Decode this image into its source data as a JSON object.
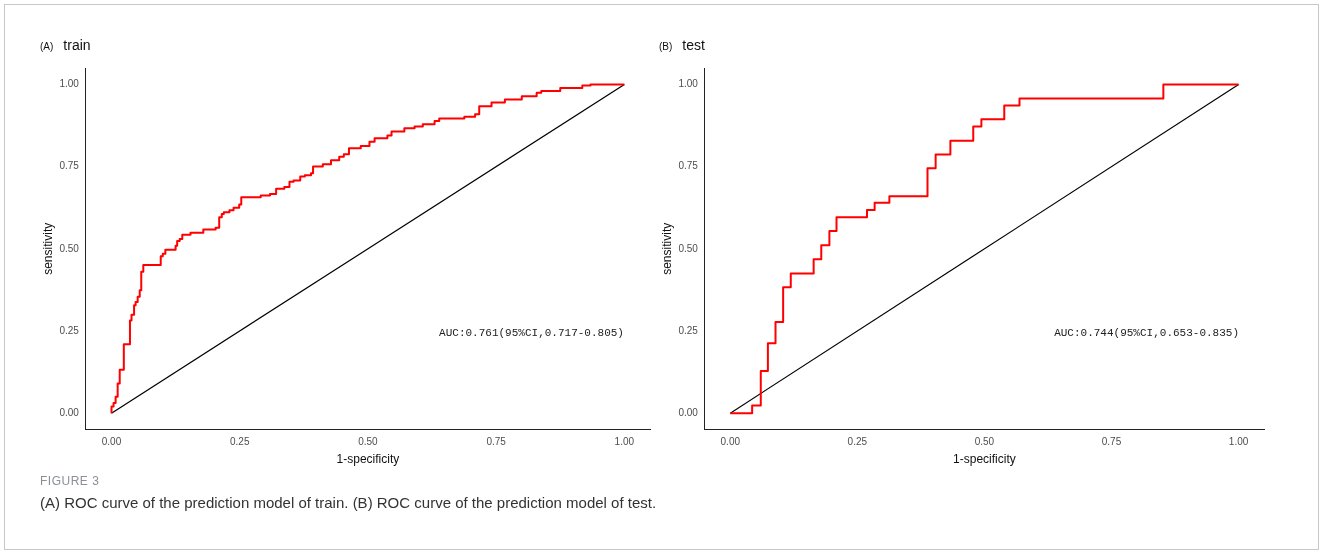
{
  "chart_data": [
    {
      "type": "step",
      "title": "train",
      "xlabel": "1-specificity",
      "ylabel": "sensitivity",
      "xlim": [
        -0.05,
        1.05
      ],
      "ylim": [
        -0.05,
        1.05
      ],
      "xticks": [
        {
          "value": 0,
          "label": "0.00"
        },
        {
          "value": 0.25,
          "label": "0.25"
        },
        {
          "value": 0.5,
          "label": "0.50"
        },
        {
          "value": 0.75,
          "label": "0.75"
        },
        {
          "value": 1,
          "label": "1.00"
        }
      ],
      "yticks": [
        {
          "value": 0,
          "label": "0.00"
        },
        {
          "value": 0.25,
          "label": "0.25"
        },
        {
          "value": 0.5,
          "label": "0.50"
        },
        {
          "value": 0.75,
          "label": "0.75"
        },
        {
          "value": 1,
          "label": "1.00"
        }
      ],
      "grid": false,
      "legend": false,
      "marker": "none",
      "line_style": "solid",
      "annotations": [
        "(A)",
        "AUC:0.761(95%CI,0.717-0.805)",
        "FIGURE 3",
        "(A) ROC curve of the prediction model of train. (B) ROC curve of the prediction model of test."
      ],
      "series": [
        {
          "type": "step",
          "color": "#ff0000",
          "x": [
            0,
            0,
            0.004,
            0.008,
            0.012,
            0.016,
            0.024,
            0.036,
            0.039,
            0.044,
            0.047,
            0.051,
            0.055,
            0.058,
            0.062,
            0.096,
            0.1,
            0.105,
            0.125,
            0.128,
            0.133,
            0.138,
            0.154,
            0.179,
            0.203,
            0.21,
            0.215,
            0.219,
            0.23,
            0.238,
            0.249,
            0.253,
            0.291,
            0.309,
            0.321,
            0.337,
            0.347,
            0.355,
            0.368,
            0.377,
            0.389,
            0.393,
            0.412,
            0.428,
            0.444,
            0.453,
            0.463,
            0.486,
            0.503,
            0.513,
            0.538,
            0.546,
            0.571,
            0.591,
            0.607,
            0.63,
            0.639,
            0.688,
            0.709,
            0.717,
            0.741,
            0.767,
            0.8,
            0.829,
            0.838,
            0.875,
            0.918,
            0.934,
            1
          ],
          "values": [
            0,
            0.02,
            0.031,
            0.05,
            0.09,
            0.132,
            0.21,
            0.282,
            0.299,
            0.328,
            0.338,
            0.354,
            0.374,
            0.43,
            0.451,
            0.477,
            0.485,
            0.497,
            0.509,
            0.524,
            0.53,
            0.543,
            0.549,
            0.559,
            0.564,
            0.596,
            0.606,
            0.611,
            0.617,
            0.625,
            0.635,
            0.657,
            0.662,
            0.667,
            0.683,
            0.688,
            0.704,
            0.708,
            0.72,
            0.724,
            0.73,
            0.75,
            0.757,
            0.769,
            0.78,
            0.788,
            0.806,
            0.813,
            0.826,
            0.836,
            0.845,
            0.857,
            0.867,
            0.872,
            0.879,
            0.889,
            0.896,
            0.902,
            0.909,
            0.934,
            0.945,
            0.954,
            0.964,
            0.975,
            0.98,
            0.989,
            0.997,
            1,
            1
          ]
        },
        {
          "type": "line",
          "color": "#000000",
          "x": [
            0,
            1
          ],
          "values": [
            0,
            1
          ]
        }
      ]
    },
    {
      "type": "step",
      "title": "test",
      "xlabel": "1-specificity",
      "ylabel": "sensitivity",
      "xlim": [
        -0.05,
        1.05
      ],
      "ylim": [
        -0.05,
        1.05
      ],
      "xticks": [
        {
          "value": 0,
          "label": "0.00"
        },
        {
          "value": 0.25,
          "label": "0.25"
        },
        {
          "value": 0.5,
          "label": "0.50"
        },
        {
          "value": 0.75,
          "label": "0.75"
        },
        {
          "value": 1,
          "label": "1.00"
        }
      ],
      "yticks": [
        {
          "value": 0,
          "label": "0.00"
        },
        {
          "value": 0.25,
          "label": "0.25"
        },
        {
          "value": 0.5,
          "label": "0.50"
        },
        {
          "value": 0.75,
          "label": "0.75"
        },
        {
          "value": 1,
          "label": "1.00"
        }
      ],
      "grid": false,
      "legend": false,
      "marker": "none",
      "line_style": "solid",
      "annotations": [
        "(B)",
        "AUC:0.744(95%CI,0.653-0.835)"
      ],
      "series": [
        {
          "type": "step",
          "color": "#ff0000",
          "x": [
            0,
            0.043,
            0.06,
            0.074,
            0.089,
            0.104,
            0.119,
            0.164,
            0.179,
            0.195,
            0.209,
            0.269,
            0.284,
            0.313,
            0.388,
            0.404,
            0.433,
            0.478,
            0.494,
            0.539,
            0.569,
            0.852,
            1
          ],
          "values": [
            0,
            0.023,
            0.128,
            0.213,
            0.277,
            0.383,
            0.425,
            0.468,
            0.511,
            0.554,
            0.596,
            0.618,
            0.64,
            0.66,
            0.745,
            0.787,
            0.829,
            0.872,
            0.894,
            0.936,
            0.957,
            1,
            1
          ]
        },
        {
          "type": "line",
          "color": "#000000",
          "x": [
            0,
            1
          ],
          "values": [
            0,
            1
          ]
        }
      ]
    }
  ]
}
